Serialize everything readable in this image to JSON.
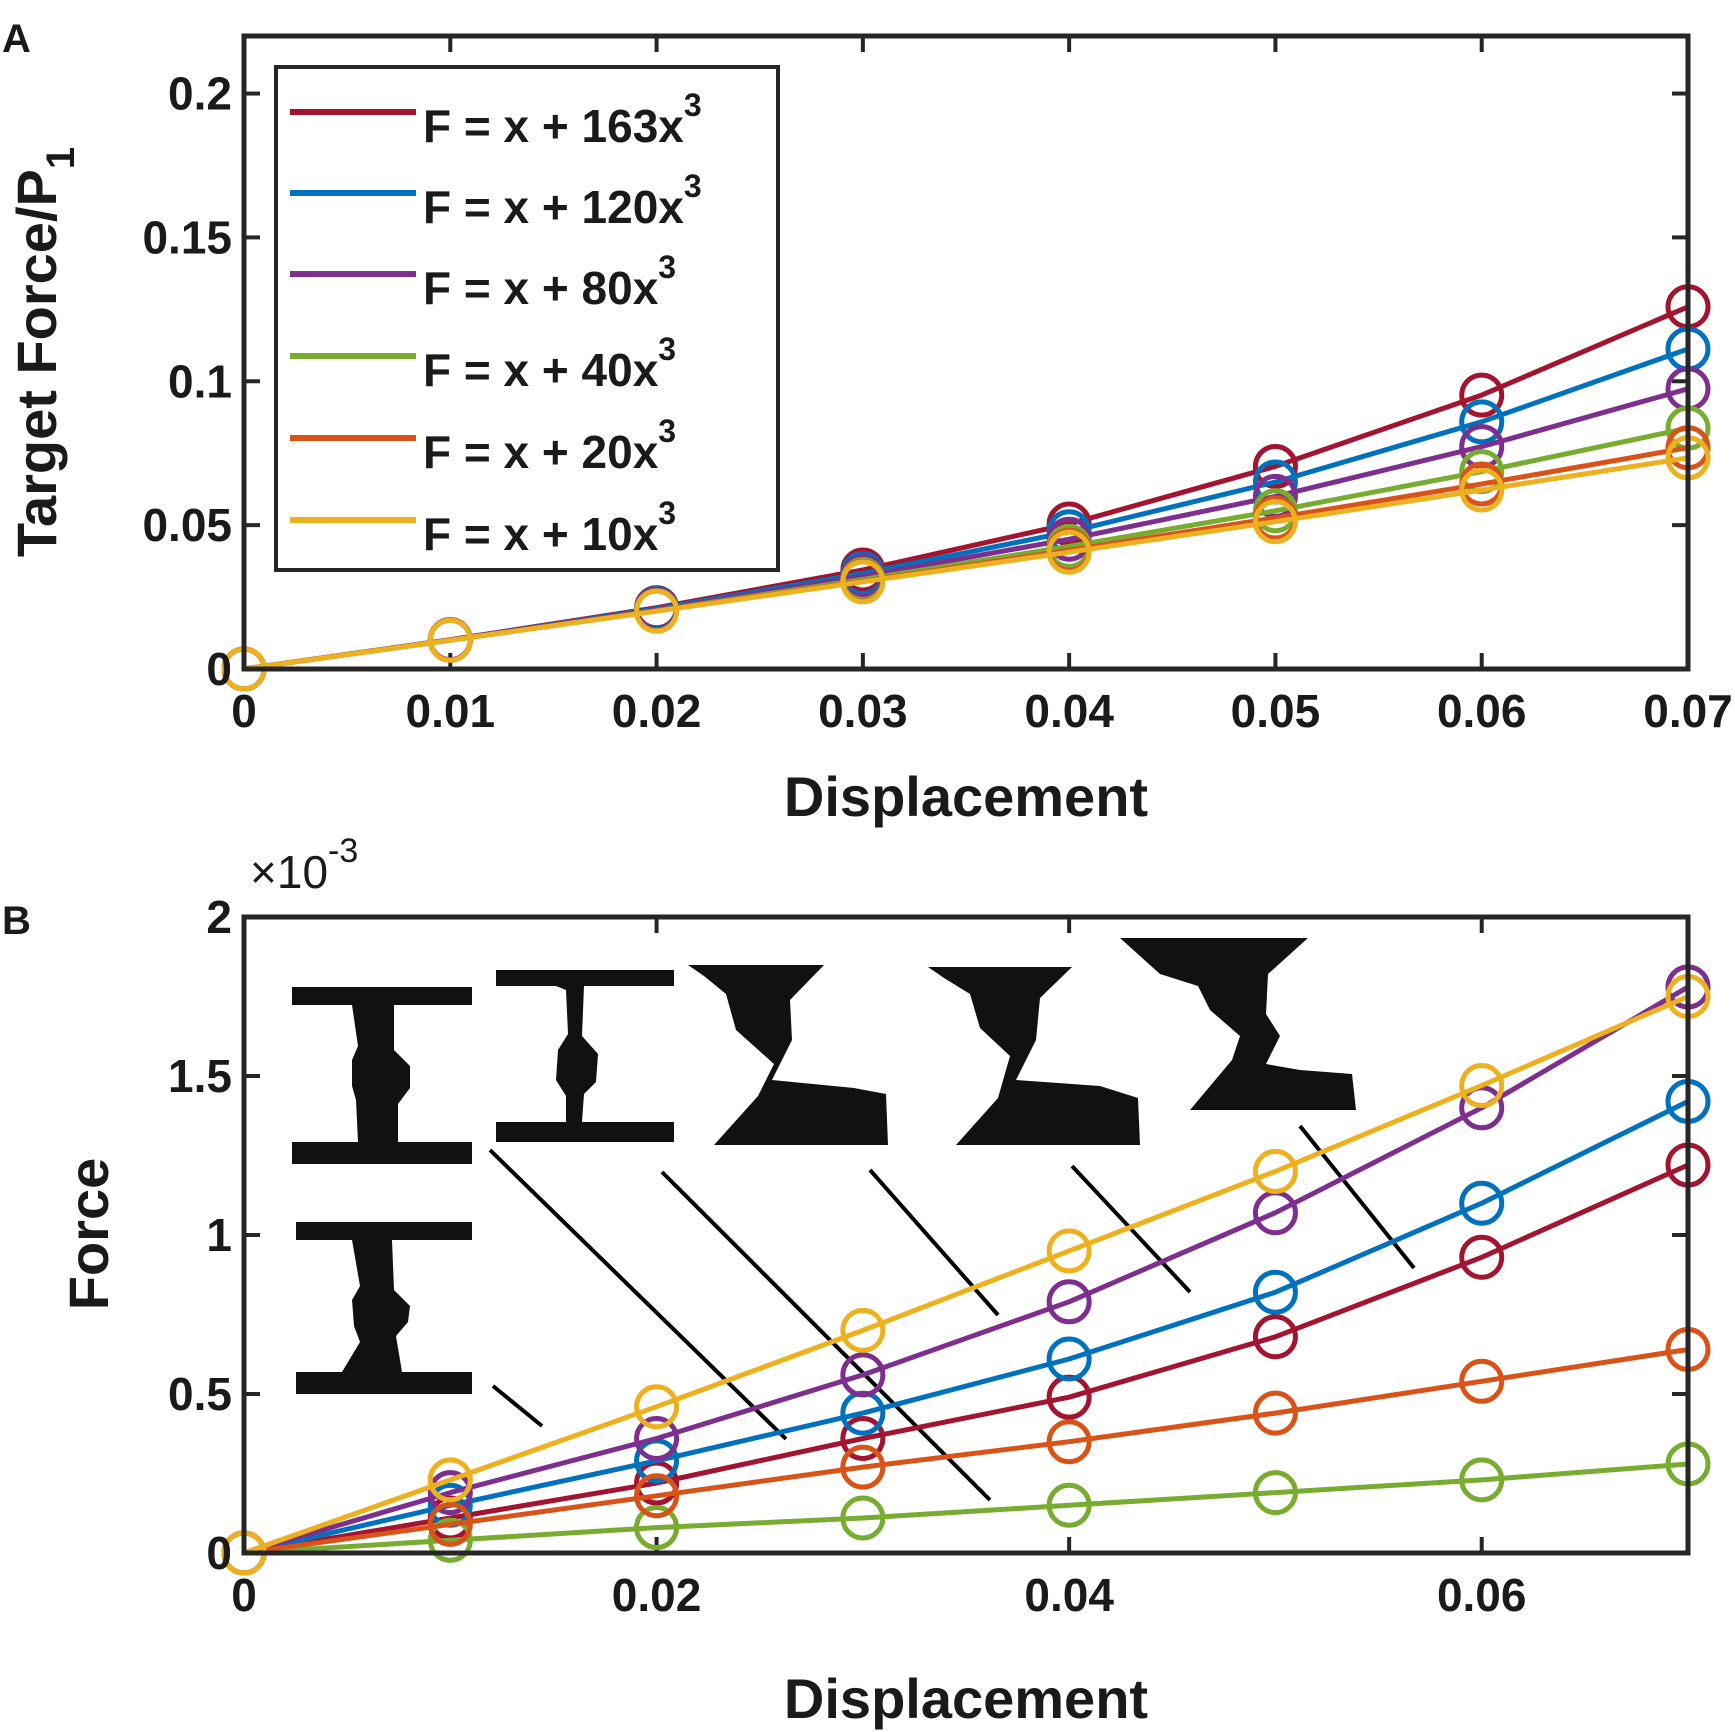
{
  "colors": {
    "red": "#a2142f",
    "blue": "#0072bd",
    "purple": "#7e2f8e",
    "green": "#77ac30",
    "orange": "#d95319",
    "yellow": "#edb120",
    "axis": "#262626"
  },
  "chart_data": [
    {
      "id": "A",
      "panel_label": "A",
      "type": "line",
      "markers": "open-circle",
      "title": "",
      "xlabel": "Displacement",
      "ylabel_main": "Target Force/P",
      "ylabel_sub": "1",
      "xlim": [
        0,
        0.07
      ],
      "ylim": [
        0,
        0.22
      ],
      "xticks": [
        0,
        0.01,
        0.02,
        0.03,
        0.04,
        0.05,
        0.06,
        0.07
      ],
      "xtick_labels": [
        "0",
        "0.01",
        "0.02",
        "0.03",
        "0.04",
        "0.05",
        "0.06",
        "0.07"
      ],
      "yticks": [
        0,
        0.05,
        0.1,
        0.15,
        0.2
      ],
      "ytick_labels": [
        "0",
        "0.05",
        "0.1",
        "0.15",
        "0.2"
      ],
      "legend_position": "top-left",
      "x": [
        0,
        0.01,
        0.02,
        0.03,
        0.04,
        0.05,
        0.06,
        0.07
      ],
      "series": [
        {
          "name": "F = x + 163x",
          "sup": "3",
          "color_key": "red",
          "values": [
            0,
            0.0102,
            0.0213,
            0.0344,
            0.0504,
            0.0704,
            0.0952,
            0.1259
          ]
        },
        {
          "name": "F = x + 120x",
          "sup": "3",
          "color_key": "blue",
          "values": [
            0,
            0.0101,
            0.021,
            0.0332,
            0.0477,
            0.065,
            0.0859,
            0.1112
          ]
        },
        {
          "name": "F = x + 80x",
          "sup": "3",
          "color_key": "purple",
          "values": [
            0,
            0.0101,
            0.0206,
            0.0322,
            0.0451,
            0.06,
            0.0773,
            0.0974
          ]
        },
        {
          "name": "F = x + 40x",
          "sup": "3",
          "color_key": "green",
          "values": [
            0,
            0.01,
            0.0203,
            0.0311,
            0.0426,
            0.055,
            0.0686,
            0.0837
          ]
        },
        {
          "name": "F = x + 20x",
          "sup": "3",
          "color_key": "orange",
          "values": [
            0,
            0.01,
            0.0202,
            0.0305,
            0.0413,
            0.0525,
            0.0643,
            0.0769
          ]
        },
        {
          "name": "F = x + 10x",
          "sup": "3",
          "color_key": "yellow",
          "values": [
            0,
            0.01,
            0.0201,
            0.0303,
            0.0406,
            0.0512,
            0.0622,
            0.0734
          ]
        }
      ]
    },
    {
      "id": "B",
      "panel_label": "B",
      "type": "line",
      "markers": "open-circle",
      "title": "",
      "xlabel": "Displacement",
      "ylabel_main": "Force",
      "exponent_base": "×10",
      "exponent_power": "-3",
      "xlim": [
        0,
        0.07
      ],
      "ylim": [
        0,
        2
      ],
      "xticks": [
        0,
        0.02,
        0.04,
        0.06
      ],
      "xtick_labels": [
        "0",
        "0.02",
        "0.04",
        "0.06"
      ],
      "yticks": [
        0,
        0.5,
        1,
        1.5,
        2
      ],
      "ytick_labels": [
        "0",
        "0.5",
        "1",
        "1.5",
        "2"
      ],
      "x": [
        0,
        0.01,
        0.02,
        0.03,
        0.04,
        0.05,
        0.06,
        0.07
      ],
      "series": [
        {
          "name": "F = x + 163x",
          "color_key": "red",
          "values": [
            0,
            0.11,
            0.22,
            0.36,
            0.49,
            0.68,
            0.93,
            1.22
          ]
        },
        {
          "name": "F = x + 120x",
          "color_key": "blue",
          "values": [
            0,
            0.15,
            0.29,
            0.44,
            0.61,
            0.82,
            1.1,
            1.42
          ]
        },
        {
          "name": "F = x + 80x",
          "color_key": "purple",
          "values": [
            0,
            0.19,
            0.36,
            0.56,
            0.79,
            1.07,
            1.4,
            1.78
          ]
        },
        {
          "name": "F = x + 40x",
          "color_key": "green",
          "values": [
            0,
            0.04,
            0.08,
            0.11,
            0.15,
            0.19,
            0.23,
            0.28
          ]
        },
        {
          "name": "F = x + 20x",
          "color_key": "orange",
          "values": [
            0,
            0.09,
            0.18,
            0.27,
            0.35,
            0.44,
            0.54,
            0.64
          ]
        },
        {
          "name": "F = x + 10x",
          "color_key": "yellow",
          "values": [
            0,
            0.23,
            0.46,
            0.7,
            0.95,
            1.2,
            1.47,
            1.75
          ]
        }
      ],
      "insets": [
        {
          "name": "inset-shape-1",
          "kind": "i-beam-bulb",
          "target_x": 0.01,
          "target_y": 0.06
        },
        {
          "name": "inset-shape-2",
          "kind": "i-beam-bulb",
          "target_x": 0.02,
          "target_y": 0.22
        },
        {
          "name": "inset-shape-3",
          "kind": "i-beam-bulb",
          "target_x": 0.024,
          "target_y": 0.36
        },
        {
          "name": "inset-shape-4",
          "kind": "z-shape",
          "target_x": 0.036,
          "target_y": 0.38
        },
        {
          "name": "inset-shape-5",
          "kind": "z-shape",
          "target_x": 0.046,
          "target_y": 0.96
        },
        {
          "name": "inset-shape-6",
          "kind": "z-shape",
          "target_x": 0.057,
          "target_y": 0.89
        }
      ]
    }
  ]
}
